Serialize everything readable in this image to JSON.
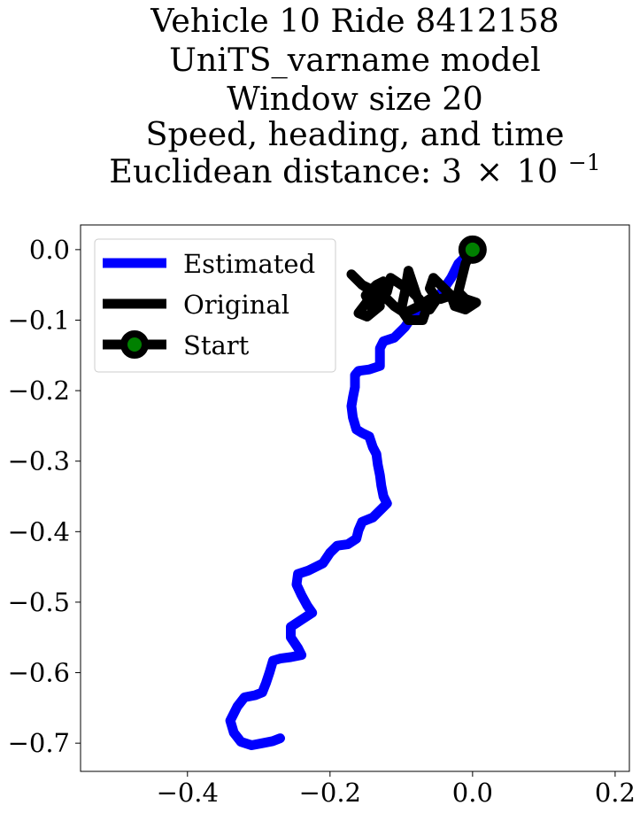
{
  "chart_data": {
    "type": "line",
    "title_lines": [
      "Vehicle 10 Ride 8412158",
      "UniTS_varname model",
      "Window size 20",
      "Speed, heading, and time"
    ],
    "distance_label_prefix": "Euclidean distance: ",
    "distance_label_mantissa": "3",
    "distance_label_times": "×",
    "distance_label_base": "10",
    "distance_label_exponent": "−1",
    "xlim": [
      -0.55,
      0.22
    ],
    "ylim": [
      -0.74,
      0.035
    ],
    "xticks": [
      -0.4,
      -0.2,
      0.0,
      0.2
    ],
    "xtick_labels": [
      "−0.4",
      "−0.2",
      "0.0",
      "0.2"
    ],
    "yticks": [
      0.0,
      -0.1,
      -0.2,
      -0.3,
      -0.4,
      -0.5,
      -0.6,
      -0.7
    ],
    "ytick_labels": [
      "0.0",
      "−0.1",
      "−0.2",
      "−0.3",
      "−0.4",
      "−0.5",
      "−0.6",
      "−0.7"
    ],
    "grid": false,
    "legend_position": "upper-left",
    "series": [
      {
        "name": "Estimated",
        "color": "#0000ff",
        "points": [
          [
            0.0,
            0.0
          ],
          [
            -0.01,
            -0.01
          ],
          [
            -0.02,
            -0.02
          ],
          [
            -0.03,
            -0.04
          ],
          [
            -0.04,
            -0.055
          ],
          [
            -0.05,
            -0.07
          ],
          [
            -0.06,
            -0.08
          ],
          [
            -0.07,
            -0.09
          ],
          [
            -0.085,
            -0.095
          ],
          [
            -0.095,
            -0.11
          ],
          [
            -0.11,
            -0.125
          ],
          [
            -0.125,
            -0.13
          ],
          [
            -0.13,
            -0.14
          ],
          [
            -0.13,
            -0.155
          ],
          [
            -0.13,
            -0.165
          ],
          [
            -0.145,
            -0.17
          ],
          [
            -0.16,
            -0.172
          ],
          [
            -0.165,
            -0.178
          ],
          [
            -0.165,
            -0.195
          ],
          [
            -0.168,
            -0.21
          ],
          [
            -0.17,
            -0.222
          ],
          [
            -0.168,
            -0.238
          ],
          [
            -0.163,
            -0.255
          ],
          [
            -0.155,
            -0.26
          ],
          [
            -0.145,
            -0.265
          ],
          [
            -0.14,
            -0.28
          ],
          [
            -0.135,
            -0.29
          ],
          [
            -0.133,
            -0.305
          ],
          [
            -0.13,
            -0.32
          ],
          [
            -0.128,
            -0.335
          ],
          [
            -0.125,
            -0.35
          ],
          [
            -0.12,
            -0.36
          ],
          [
            -0.125,
            -0.365
          ],
          [
            -0.14,
            -0.38
          ],
          [
            -0.155,
            -0.386
          ],
          [
            -0.16,
            -0.398
          ],
          [
            -0.163,
            -0.41
          ],
          [
            -0.175,
            -0.418
          ],
          [
            -0.19,
            -0.42
          ],
          [
            -0.2,
            -0.43
          ],
          [
            -0.21,
            -0.445
          ],
          [
            -0.23,
            -0.455
          ],
          [
            -0.245,
            -0.46
          ],
          [
            -0.247,
            -0.475
          ],
          [
            -0.24,
            -0.49
          ],
          [
            -0.232,
            -0.505
          ],
          [
            -0.225,
            -0.515
          ],
          [
            -0.24,
            -0.525
          ],
          [
            -0.255,
            -0.535
          ],
          [
            -0.255,
            -0.55
          ],
          [
            -0.245,
            -0.565
          ],
          [
            -0.24,
            -0.575
          ],
          [
            -0.255,
            -0.578
          ],
          [
            -0.27,
            -0.58
          ],
          [
            -0.28,
            -0.583
          ],
          [
            -0.285,
            -0.6
          ],
          [
            -0.29,
            -0.615
          ],
          [
            -0.295,
            -0.628
          ],
          [
            -0.305,
            -0.632
          ],
          [
            -0.32,
            -0.635
          ],
          [
            -0.33,
            -0.648
          ],
          [
            -0.34,
            -0.668
          ],
          [
            -0.335,
            -0.685
          ],
          [
            -0.325,
            -0.698
          ],
          [
            -0.31,
            -0.703
          ],
          [
            -0.295,
            -0.7
          ],
          [
            -0.28,
            -0.697
          ],
          [
            -0.27,
            -0.693
          ]
        ]
      },
      {
        "name": "Original",
        "color": "#000000",
        "points": [
          [
            0.0,
            0.0
          ],
          [
            -0.01,
            -0.02
          ],
          [
            -0.015,
            -0.04
          ],
          [
            -0.02,
            -0.06
          ],
          [
            -0.01,
            -0.07
          ],
          [
            0.005,
            -0.075
          ],
          [
            -0.01,
            -0.085
          ],
          [
            -0.025,
            -0.08
          ],
          [
            -0.03,
            -0.065
          ],
          [
            -0.045,
            -0.05
          ],
          [
            -0.055,
            -0.04
          ],
          [
            -0.06,
            -0.055
          ],
          [
            -0.05,
            -0.07
          ],
          [
            -0.06,
            -0.085
          ],
          [
            -0.075,
            -0.075
          ],
          [
            -0.08,
            -0.06
          ],
          [
            -0.085,
            -0.045
          ],
          [
            -0.09,
            -0.03
          ],
          [
            -0.095,
            -0.06
          ],
          [
            -0.1,
            -0.085
          ],
          [
            -0.09,
            -0.1
          ],
          [
            -0.07,
            -0.1
          ],
          [
            -0.065,
            -0.085
          ],
          [
            -0.075,
            -0.07
          ],
          [
            -0.085,
            -0.06
          ],
          [
            -0.1,
            -0.05
          ],
          [
            -0.115,
            -0.04
          ],
          [
            -0.12,
            -0.06
          ],
          [
            -0.13,
            -0.075
          ],
          [
            -0.14,
            -0.085
          ],
          [
            -0.15,
            -0.065
          ],
          [
            -0.135,
            -0.05
          ],
          [
            -0.125,
            -0.045
          ],
          [
            -0.145,
            -0.07
          ],
          [
            -0.16,
            -0.09
          ],
          [
            -0.148,
            -0.095
          ],
          [
            -0.13,
            -0.08
          ],
          [
            -0.14,
            -0.06
          ],
          [
            -0.155,
            -0.05
          ],
          [
            -0.17,
            -0.035
          ],
          [
            -0.155,
            -0.05
          ],
          [
            -0.125,
            -0.065
          ],
          [
            -0.11,
            -0.08
          ],
          [
            -0.095,
            -0.09
          ],
          [
            -0.075,
            -0.08
          ],
          [
            -0.06,
            -0.07
          ],
          [
            -0.045,
            -0.07
          ],
          [
            -0.03,
            -0.065
          ],
          [
            -0.015,
            -0.07
          ],
          [
            -0.005,
            -0.075
          ]
        ]
      },
      {
        "name": "Start",
        "color": "#000000",
        "marker_face": "#008000",
        "points": [
          [
            0.0,
            0.0
          ]
        ]
      }
    ]
  }
}
